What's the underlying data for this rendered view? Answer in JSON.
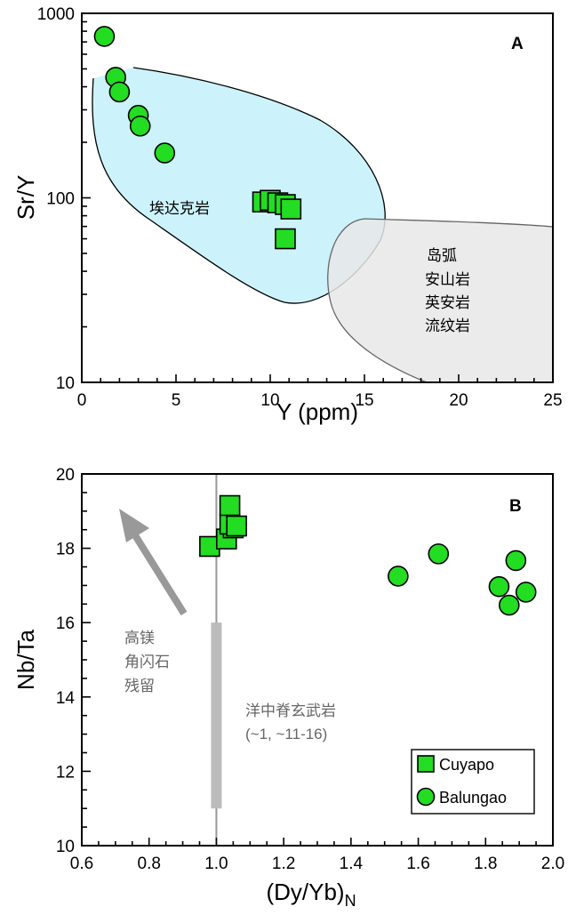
{
  "chart_data": [
    {
      "panel": "A",
      "type": "scatter",
      "xlabel": "Y (ppm)",
      "ylabel": "Sr/Y",
      "xlim": [
        0,
        25
      ],
      "ylim": [
        10,
        1000
      ],
      "yscale": "log",
      "x_ticks": [
        0,
        5,
        10,
        15,
        20,
        25
      ],
      "x_tick_labels": [
        "0",
        "5",
        "10",
        "15",
        "20",
        "25"
      ],
      "y_ticks": [
        10,
        100,
        1000
      ],
      "y_tick_labels": [
        "10",
        "100",
        "1000"
      ],
      "fields": [
        {
          "label": "埃达克岩",
          "color": "#ccf3fb"
        },
        {
          "label_lines": [
            "岛弧",
            "安山岩",
            "英安岩",
            "流纹岩"
          ],
          "color": "#e8e8e8"
        }
      ],
      "series": [
        {
          "marker": "circle",
          "color": "#22dd22",
          "points": [
            [
              1.2,
              750
            ],
            [
              1.8,
              450
            ],
            [
              2.0,
              375
            ],
            [
              3.0,
              280
            ],
            [
              3.1,
              245
            ],
            [
              4.4,
              175
            ]
          ]
        },
        {
          "marker": "square",
          "color": "#22dd22",
          "points": [
            [
              9.6,
              95
            ],
            [
              10.0,
              97
            ],
            [
              10.4,
              94
            ],
            [
              10.8,
              92
            ],
            [
              11.1,
              87
            ],
            [
              10.8,
              60
            ]
          ]
        }
      ]
    },
    {
      "panel": "B",
      "type": "scatter",
      "xlabel": "(Dy/Yb)",
      "xlabel_sub": "N",
      "ylabel": "Nb/Ta",
      "xlim": [
        0.6,
        2.0
      ],
      "ylim": [
        10,
        20
      ],
      "x_ticks": [
        0.6,
        0.8,
        1.0,
        1.2,
        1.4,
        1.6,
        1.8,
        2.0
      ],
      "x_tick_labels": [
        "0.6",
        "0.8",
        "1.0",
        "1.2",
        "1.4",
        "1.6",
        "1.8",
        "2.0"
      ],
      "y_ticks": [
        10,
        12,
        14,
        16,
        18,
        20
      ],
      "y_tick_labels": [
        "10",
        "12",
        "14",
        "16",
        "18",
        "20"
      ],
      "reference_line_x": 1.0,
      "reference_band": {
        "x": 1.0,
        "y": [
          11,
          16
        ]
      },
      "annotations": [
        {
          "lines": [
            "高镁",
            "角闪石",
            "残留"
          ]
        },
        {
          "lines": [
            "洋中脊玄武岩",
            "(~1, ~11-16)"
          ]
        }
      ],
      "series": [
        {
          "name": "Cuyapo",
          "marker": "square",
          "color": "#22dd22",
          "points": [
            [
              0.98,
              18.05
            ],
            [
              1.03,
              18.25
            ],
            [
              1.05,
              18.55
            ],
            [
              1.04,
              18.65
            ],
            [
              1.06,
              18.6
            ],
            [
              1.04,
              19.15
            ]
          ]
        },
        {
          "name": "Balungao",
          "marker": "circle",
          "color": "#22dd22",
          "points": [
            [
              1.54,
              17.25
            ],
            [
              1.66,
              17.85
            ],
            [
              1.84,
              16.97
            ],
            [
              1.87,
              16.47
            ],
            [
              1.89,
              17.67
            ],
            [
              1.92,
              16.82
            ]
          ]
        }
      ]
    }
  ]
}
